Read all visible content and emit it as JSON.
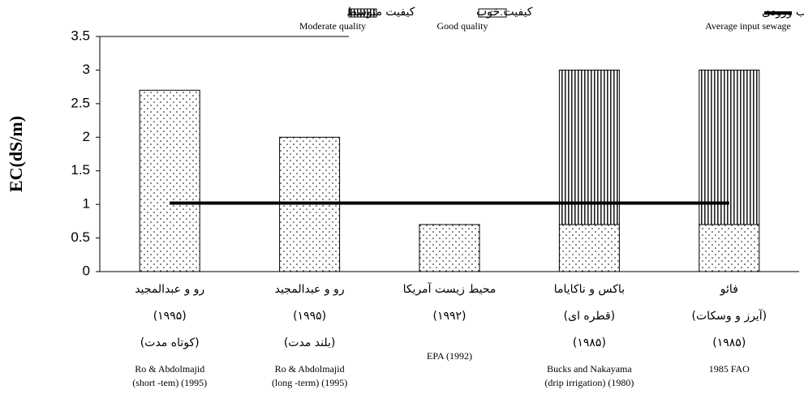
{
  "chart_data": {
    "type": "bar",
    "stacked": true,
    "ylabel": "EC(dS/m)",
    "categories": [
      [
        "رو و عبدالمجید",
        "(۱۹۹۵)",
        "(کوتاه مدت)",
        "Ro & Abdolmajid",
        "(short -tem) (1995)"
      ],
      [
        "رو و عبدالمجید",
        "(۱۹۹۵)",
        "(بلند مدت)",
        "Ro & Abdolmajid",
        "(long -term) (1995)"
      ],
      [
        "محیط زیست آمریکا",
        "(۱۹۹۲)",
        "EPA (1992)"
      ],
      [
        "باکس و ناکایاما",
        "(قطره ای)",
        "(۱۹۸۵)",
        "Bucks and Nakayama",
        "(drip irrigation) (1980)"
      ],
      [
        "فائو",
        "(آیرز و وسکات)",
        "(۱۹۸۵)",
        "1985  FAO"
      ]
    ],
    "series": [
      {
        "name": "کیفیت خوب",
        "label": "Good quality",
        "color": "#000000",
        "values": [
          2.7,
          2.0,
          0.7,
          0.7,
          0.7
        ]
      },
      {
        "name": "کیفیت متوسط",
        "label": "Moderate quality",
        "color": "#000000",
        "values": [
          null,
          null,
          null,
          2.3,
          2.3
        ]
      },
      {
        "name": "میانگین فاضلاب ورودی",
        "label": "Average input sewage",
        "color": "#000000",
        "type": "line",
        "values": [
          1.02,
          1.02,
          1.02,
          1.02,
          1.02
        ]
      }
    ],
    "ylim": [
      0,
      3.5
    ],
    "yticks": [
      0,
      0.5,
      1,
      1.5,
      2,
      2.5,
      3,
      3.5
    ]
  }
}
